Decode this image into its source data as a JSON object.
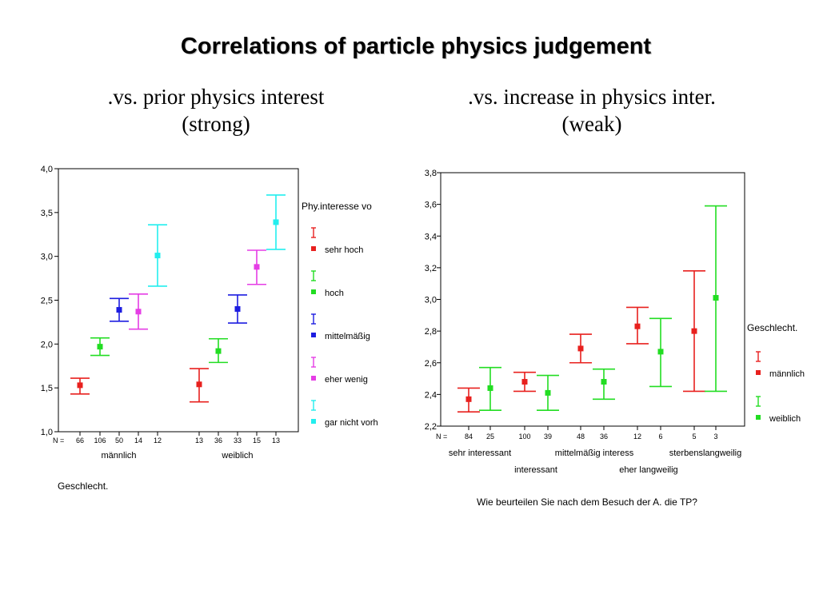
{
  "title": "Correlations of particle physics judgement",
  "subtitle_left": {
    "line1": ".vs. prior physics interest",
    "line2": "(strong)"
  },
  "subtitle_right": {
    "line1": ".vs. increase in physics inter.",
    "line2": "(weak)"
  },
  "chart_data": [
    {
      "type": "scatter",
      "title": "",
      "xlabel": "Geschlecht.",
      "ylabel": "",
      "ylim": [
        1.0,
        4.0
      ],
      "yticks": [
        "1,0",
        "1,5",
        "2,0",
        "2,5",
        "3,0",
        "3,5",
        "4,0"
      ],
      "n_label": "N =",
      "groups": [
        "männlich",
        "weiblich"
      ],
      "legend_title": "Phy.interesse vo",
      "legend_position": "right",
      "grid": false,
      "series": [
        {
          "name": "sehr hoch",
          "color": "#e8201e",
          "n": [
            66,
            13
          ],
          "mean": [
            1.53,
            1.54
          ],
          "low": [
            1.43,
            1.34
          ],
          "high": [
            1.61,
            1.72
          ]
        },
        {
          "name": "hoch",
          "color": "#22dd22",
          "n": [
            106,
            36
          ],
          "mean": [
            1.97,
            1.92
          ],
          "low": [
            1.87,
            1.79
          ],
          "high": [
            2.07,
            2.06
          ]
        },
        {
          "name": "mittelmäßig",
          "color": "#1d1de0",
          "n": [
            50,
            33
          ],
          "mean": [
            2.39,
            2.4
          ],
          "low": [
            2.26,
            2.24
          ],
          "high": [
            2.52,
            2.56
          ]
        },
        {
          "name": "eher wenig",
          "color": "#e53de5",
          "n": [
            14,
            15
          ],
          "mean": [
            2.37,
            2.88
          ],
          "low": [
            2.17,
            2.68
          ],
          "high": [
            2.57,
            3.07
          ]
        },
        {
          "name": "gar nicht vorh",
          "color": "#22eeee",
          "n": [
            12,
            13
          ],
          "mean": [
            3.01,
            3.39
          ],
          "low": [
            2.66,
            3.08
          ],
          "high": [
            3.36,
            3.7
          ]
        }
      ]
    },
    {
      "type": "scatter",
      "title": "",
      "xlabel": "Wie beurteilen Sie nach dem Besuch der A. die TP?",
      "ylabel": "",
      "ylim": [
        2.2,
        3.8
      ],
      "yticks": [
        "2,2",
        "2,4",
        "2,6",
        "2,8",
        "3,0",
        "3,2",
        "3,4",
        "3,6",
        "3,8"
      ],
      "n_label": "N =",
      "categories": [
        "sehr interessant",
        "interessant",
        "mittelmäßig interess",
        "eher langweilig",
        "sterbenslangweilig"
      ],
      "legend_title": "Geschlecht.",
      "legend_position": "right",
      "grid": false,
      "series": [
        {
          "name": "männlich",
          "color": "#e8201e",
          "n": [
            84,
            100,
            48,
            12,
            5
          ],
          "mean": [
            2.37,
            2.48,
            2.69,
            2.83,
            2.8
          ],
          "low": [
            2.29,
            2.42,
            2.6,
            2.72,
            2.42
          ],
          "high": [
            2.44,
            2.54,
            2.78,
            2.95,
            3.18
          ]
        },
        {
          "name": "weiblich",
          "color": "#22dd22",
          "n": [
            25,
            39,
            36,
            6,
            3
          ],
          "mean": [
            2.44,
            2.41,
            2.48,
            2.67,
            3.01
          ],
          "low": [
            2.3,
            2.3,
            2.37,
            2.45,
            2.42
          ],
          "high": [
            2.57,
            2.52,
            2.56,
            2.88,
            3.59
          ]
        }
      ]
    }
  ]
}
